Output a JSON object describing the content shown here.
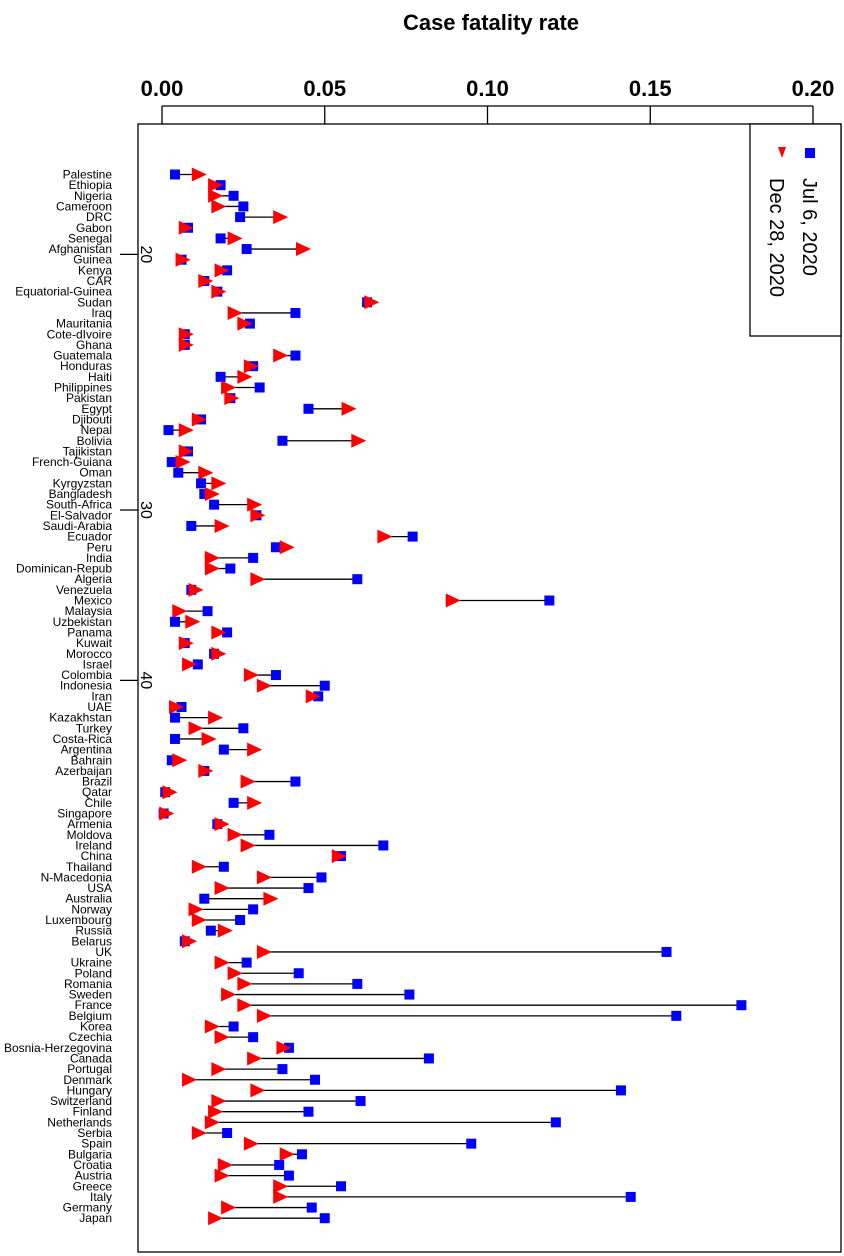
{
  "chart_data": {
    "type": "scatter",
    "title": "Case fatality rate",
    "xlim": [
      0,
      0.2
    ],
    "x_ticks": [
      "0.00",
      "0.05",
      "0.10",
      "0.15",
      "0.20"
    ],
    "x_tick_values": [
      0,
      0.05,
      0.1,
      0.15,
      0.2
    ],
    "y_rank_labels": [
      {
        "label": "20",
        "after_country": "Afghanistan"
      },
      {
        "label": "30",
        "after_country": "South-Africa"
      },
      {
        "label": "40",
        "after_country": "Colombia"
      }
    ],
    "legend": {
      "placement": "top-right",
      "entries": [
        {
          "label": "Jul 6, 2020",
          "marker": "square",
          "color": "#0000ff"
        },
        {
          "label": "Dec 28, 2020",
          "marker": "triangle",
          "color": "#ff0000"
        }
      ]
    },
    "series": [
      {
        "name": "Jul 6, 2020",
        "color": "#0000ff",
        "marker": "square",
        "key": "jul"
      },
      {
        "name": "Dec 28, 2020",
        "color": "#ff0000",
        "marker": "triangle",
        "key": "dec"
      }
    ],
    "countries": [
      {
        "name": "Palestine",
        "jul": 0.004,
        "dec": 0.011
      },
      {
        "name": "Ethiopia",
        "jul": 0.018,
        "dec": 0.016
      },
      {
        "name": "Nigeria",
        "jul": 0.022,
        "dec": 0.016
      },
      {
        "name": "Cameroon",
        "jul": 0.025,
        "dec": 0.017
      },
      {
        "name": "DRC",
        "jul": 0.024,
        "dec": 0.036
      },
      {
        "name": "Gabon",
        "jul": 0.008,
        "dec": 0.007
      },
      {
        "name": "Senegal",
        "jul": 0.018,
        "dec": 0.022
      },
      {
        "name": "Afghanistan",
        "jul": 0.026,
        "dec": 0.043
      },
      {
        "name": "Guinea",
        "jul": 0.006,
        "dec": 0.006
      },
      {
        "name": "Kenya",
        "jul": 0.02,
        "dec": 0.018
      },
      {
        "name": "CAR",
        "jul": 0.013,
        "dec": 0.013
      },
      {
        "name": "Equatorial-Guinea",
        "jul": 0.017,
        "dec": 0.017
      },
      {
        "name": "Sudan",
        "jul": 0.063,
        "dec": 0.064
      },
      {
        "name": "Iraq",
        "jul": 0.041,
        "dec": 0.022
      },
      {
        "name": "Mauritania",
        "jul": 0.027,
        "dec": 0.025
      },
      {
        "name": "Cote-dIvoire",
        "jul": 0.007,
        "dec": 0.007
      },
      {
        "name": "Ghana",
        "jul": 0.007,
        "dec": 0.007
      },
      {
        "name": "Guatemala",
        "jul": 0.041,
        "dec": 0.036
      },
      {
        "name": "Honduras",
        "jul": 0.028,
        "dec": 0.027
      },
      {
        "name": "Haiti",
        "jul": 0.018,
        "dec": 0.025
      },
      {
        "name": "Philippines",
        "jul": 0.03,
        "dec": 0.02
      },
      {
        "name": "Pakistan",
        "jul": 0.021,
        "dec": 0.021
      },
      {
        "name": "Egypt",
        "jul": 0.045,
        "dec": 0.057
      },
      {
        "name": "Djibouti",
        "jul": 0.012,
        "dec": 0.011
      },
      {
        "name": "Nepal",
        "jul": 0.002,
        "dec": 0.007
      },
      {
        "name": "Bolivia",
        "jul": 0.037,
        "dec": 0.06
      },
      {
        "name": "Tajikistan",
        "jul": 0.008,
        "dec": 0.007
      },
      {
        "name": "French-Guiana",
        "jul": 0.003,
        "dec": 0.006
      },
      {
        "name": "Oman",
        "jul": 0.005,
        "dec": 0.013
      },
      {
        "name": "Kyrgyzstan",
        "jul": 0.012,
        "dec": 0.017
      },
      {
        "name": "Bangladesh",
        "jul": 0.013,
        "dec": 0.015
      },
      {
        "name": "South-Africa",
        "jul": 0.016,
        "dec": 0.028
      },
      {
        "name": "El-Salvador",
        "jul": 0.029,
        "dec": 0.029
      },
      {
        "name": "Saudi-Arabia",
        "jul": 0.009,
        "dec": 0.018
      },
      {
        "name": "Ecuador",
        "jul": 0.077,
        "dec": 0.068
      },
      {
        "name": "Peru",
        "jul": 0.035,
        "dec": 0.038
      },
      {
        "name": "India",
        "jul": 0.028,
        "dec": 0.015
      },
      {
        "name": "Dominican-Repub",
        "jul": 0.021,
        "dec": 0.015
      },
      {
        "name": "Algeria",
        "jul": 0.06,
        "dec": 0.029
      },
      {
        "name": "Venezuela",
        "jul": 0.009,
        "dec": 0.01
      },
      {
        "name": "Mexico",
        "jul": 0.119,
        "dec": 0.089
      },
      {
        "name": "Malaysia",
        "jul": 0.014,
        "dec": 0.005
      },
      {
        "name": "Uzbekistan",
        "jul": 0.004,
        "dec": 0.009
      },
      {
        "name": "Panama",
        "jul": 0.02,
        "dec": 0.017
      },
      {
        "name": "Kuwait",
        "jul": 0.007,
        "dec": 0.007
      },
      {
        "name": "Morocco",
        "jul": 0.016,
        "dec": 0.017
      },
      {
        "name": "Israel",
        "jul": 0.011,
        "dec": 0.008
      },
      {
        "name": "Colombia",
        "jul": 0.035,
        "dec": 0.027
      },
      {
        "name": "Indonesia",
        "jul": 0.05,
        "dec": 0.031
      },
      {
        "name": "Iran",
        "jul": 0.048,
        "dec": 0.046
      },
      {
        "name": "UAE",
        "jul": 0.006,
        "dec": 0.004
      },
      {
        "name": "Kazakhstan",
        "jul": 0.004,
        "dec": 0.016
      },
      {
        "name": "Turkey",
        "jul": 0.025,
        "dec": 0.01
      },
      {
        "name": "Costa-Rica",
        "jul": 0.004,
        "dec": 0.014
      },
      {
        "name": "Argentina",
        "jul": 0.019,
        "dec": 0.028
      },
      {
        "name": "Bahrain",
        "jul": 0.003,
        "dec": 0.005
      },
      {
        "name": "Azerbaijan",
        "jul": 0.013,
        "dec": 0.013
      },
      {
        "name": "Brazil",
        "jul": 0.041,
        "dec": 0.026
      },
      {
        "name": "Qatar",
        "jul": 0.001,
        "dec": 0.002
      },
      {
        "name": "Chile",
        "jul": 0.022,
        "dec": 0.028
      },
      {
        "name": "Singapore",
        "jul": 0.0005,
        "dec": 0.001
      },
      {
        "name": "Armenia",
        "jul": 0.017,
        "dec": 0.018
      },
      {
        "name": "Moldova",
        "jul": 0.033,
        "dec": 0.022
      },
      {
        "name": "Ireland",
        "jul": 0.068,
        "dec": 0.026
      },
      {
        "name": "China",
        "jul": 0.055,
        "dec": 0.054
      },
      {
        "name": "Thailand",
        "jul": 0.019,
        "dec": 0.011
      },
      {
        "name": "N-Macedonia",
        "jul": 0.049,
        "dec": 0.031
      },
      {
        "name": "USA",
        "jul": 0.045,
        "dec": 0.018
      },
      {
        "name": "Australia",
        "jul": 0.013,
        "dec": 0.033
      },
      {
        "name": "Norway",
        "jul": 0.028,
        "dec": 0.01
      },
      {
        "name": "Luxembourg",
        "jul": 0.024,
        "dec": 0.011
      },
      {
        "name": "Russia",
        "jul": 0.015,
        "dec": 0.019
      },
      {
        "name": "Belarus",
        "jul": 0.007,
        "dec": 0.008
      },
      {
        "name": "UK",
        "jul": 0.155,
        "dec": 0.031
      },
      {
        "name": "Ukraine",
        "jul": 0.026,
        "dec": 0.018
      },
      {
        "name": "Poland",
        "jul": 0.042,
        "dec": 0.022
      },
      {
        "name": "Romania",
        "jul": 0.06,
        "dec": 0.025
      },
      {
        "name": "Sweden",
        "jul": 0.076,
        "dec": 0.02
      },
      {
        "name": "France",
        "jul": 0.178,
        "dec": 0.025
      },
      {
        "name": "Belgium",
        "jul": 0.158,
        "dec": 0.031
      },
      {
        "name": "Korea",
        "jul": 0.022,
        "dec": 0.015
      },
      {
        "name": "Czechia",
        "jul": 0.028,
        "dec": 0.018
      },
      {
        "name": "Bosnia-Herzegovina",
        "jul": 0.039,
        "dec": 0.037
      },
      {
        "name": "Canada",
        "jul": 0.082,
        "dec": 0.028
      },
      {
        "name": "Portugal",
        "jul": 0.037,
        "dec": 0.017
      },
      {
        "name": "Denmark",
        "jul": 0.047,
        "dec": 0.008
      },
      {
        "name": "Hungary",
        "jul": 0.141,
        "dec": 0.029
      },
      {
        "name": "Switzerland",
        "jul": 0.061,
        "dec": 0.017
      },
      {
        "name": "Finland",
        "jul": 0.045,
        "dec": 0.016
      },
      {
        "name": "Netherlands",
        "jul": 0.121,
        "dec": 0.015
      },
      {
        "name": "Serbia",
        "jul": 0.02,
        "dec": 0.011
      },
      {
        "name": "Spain",
        "jul": 0.095,
        "dec": 0.027
      },
      {
        "name": "Bulgaria",
        "jul": 0.043,
        "dec": 0.038
      },
      {
        "name": "Croatia",
        "jul": 0.036,
        "dec": 0.019
      },
      {
        "name": "Austria",
        "jul": 0.039,
        "dec": 0.018
      },
      {
        "name": "Greece",
        "jul": 0.055,
        "dec": 0.036
      },
      {
        "name": "Italy",
        "jul": 0.144,
        "dec": 0.036
      },
      {
        "name": "Germany",
        "jul": 0.046,
        "dec": 0.02
      },
      {
        "name": "Japan",
        "jul": 0.05,
        "dec": 0.016
      }
    ]
  }
}
